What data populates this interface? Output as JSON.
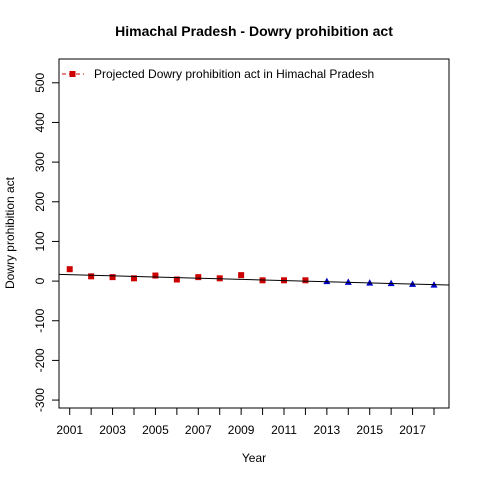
{
  "chart_data": {
    "type": "scatter",
    "title": "Himachal Pradesh  -  Dowry prohibition act",
    "xlabel": "Year",
    "ylabel": "Dowry prohibition act",
    "xlim": [
      2000.5,
      2018.7
    ],
    "ylim": [
      -320,
      560
    ],
    "x_ticks": [
      2001,
      2003,
      2005,
      2007,
      2009,
      2011,
      2013,
      2015,
      2017
    ],
    "x_minor_ticks": [
      2002,
      2004,
      2006,
      2008,
      2010,
      2012,
      2014,
      2016,
      2018
    ],
    "y_ticks": [
      -300,
      -200,
      -100,
      0,
      100,
      200,
      300,
      400,
      500
    ],
    "legend": {
      "position": "top-left",
      "label": "Projected  Dowry prohibition act  in  Himachal Pradesh"
    },
    "series": [
      {
        "style": "points",
        "marker": "square",
        "color": "#cc0000",
        "x": [
          2001,
          2002,
          2003,
          2004,
          2005,
          2006,
          2007,
          2008,
          2009,
          2010,
          2011,
          2012
        ],
        "y": [
          30,
          12,
          10,
          7,
          14,
          4,
          10,
          7,
          15,
          2,
          2,
          2
        ]
      },
      {
        "style": "points",
        "marker": "triangle",
        "color": "#0000cc",
        "x": [
          2013,
          2014,
          2015,
          2016,
          2017,
          2018
        ],
        "y": [
          0,
          -2,
          -4,
          -5,
          -7,
          -9
        ]
      },
      {
        "style": "line",
        "color": "#000000",
        "x": [
          2000.5,
          2018.7
        ],
        "y": [
          17,
          -10
        ]
      }
    ]
  }
}
